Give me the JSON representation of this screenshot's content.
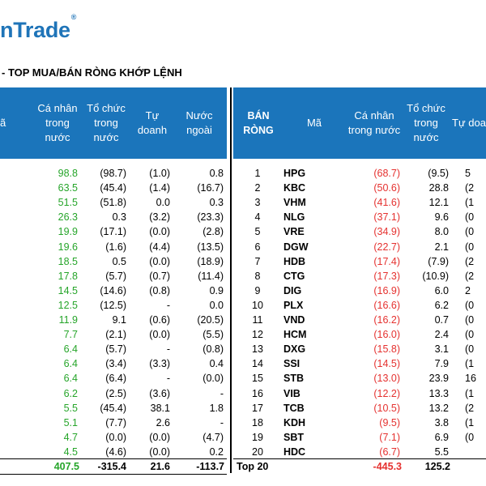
{
  "brand": {
    "name": "nTrade",
    "mark": "®"
  },
  "headline": "- TOP MUA/BÁN RÒNG KHỚP LỆNH",
  "left_table": {
    "headers": {
      "ma": "ã",
      "ca_nhan": [
        "Cá nhân",
        "trong",
        "nước"
      ],
      "to_chuc": [
        "Tổ chức",
        "trong",
        "nước"
      ],
      "tu_doanh": [
        "Tự",
        "doanh"
      ],
      "nuoc_ngoai": [
        "Nước",
        "ngoài"
      ]
    },
    "rows": [
      {
        "ca_nhan": "98.8",
        "to_chuc": "(98.7)",
        "tu_doanh": "(1.0)",
        "nuoc_ngoai": "0.8"
      },
      {
        "ca_nhan": "63.5",
        "to_chuc": "(45.4)",
        "tu_doanh": "(1.4)",
        "nuoc_ngoai": "(16.7)"
      },
      {
        "ca_nhan": "51.5",
        "to_chuc": "(51.8)",
        "tu_doanh": "0.0",
        "nuoc_ngoai": "0.3"
      },
      {
        "ca_nhan": "26.3",
        "to_chuc": "0.3",
        "tu_doanh": "(3.2)",
        "nuoc_ngoai": "(23.3)"
      },
      {
        "ca_nhan": "19.9",
        "to_chuc": "(17.1)",
        "tu_doanh": "(0.0)",
        "nuoc_ngoai": "(2.8)"
      },
      {
        "ca_nhan": "19.6",
        "to_chuc": "(1.6)",
        "tu_doanh": "(4.4)",
        "nuoc_ngoai": "(13.5)"
      },
      {
        "ca_nhan": "18.5",
        "to_chuc": "0.5",
        "tu_doanh": "(0.0)",
        "nuoc_ngoai": "(18.9)"
      },
      {
        "ca_nhan": "17.8",
        "to_chuc": "(5.7)",
        "tu_doanh": "(0.7)",
        "nuoc_ngoai": "(11.4)"
      },
      {
        "ca_nhan": "14.5",
        "to_chuc": "(14.6)",
        "tu_doanh": "(0.8)",
        "nuoc_ngoai": "0.9"
      },
      {
        "ca_nhan": "12.5",
        "to_chuc": "(12.5)",
        "tu_doanh": "-",
        "nuoc_ngoai": "0.0"
      },
      {
        "ca_nhan": "11.9",
        "to_chuc": "9.1",
        "tu_doanh": "(0.6)",
        "nuoc_ngoai": "(20.5)"
      },
      {
        "ca_nhan": "7.7",
        "to_chuc": "(2.1)",
        "tu_doanh": "(0.0)",
        "nuoc_ngoai": "(5.5)"
      },
      {
        "ca_nhan": "6.4",
        "to_chuc": "(5.7)",
        "tu_doanh": "-",
        "nuoc_ngoai": "(0.8)"
      },
      {
        "ca_nhan": "6.4",
        "to_chuc": "(3.4)",
        "tu_doanh": "(3.3)",
        "nuoc_ngoai": "0.4"
      },
      {
        "ca_nhan": "6.4",
        "to_chuc": "(6.4)",
        "tu_doanh": "-",
        "nuoc_ngoai": "(0.0)"
      },
      {
        "ca_nhan": "6.2",
        "to_chuc": "(2.5)",
        "tu_doanh": "(3.6)",
        "nuoc_ngoai": "-"
      },
      {
        "ca_nhan": "5.5",
        "to_chuc": "(45.4)",
        "tu_doanh": "38.1",
        "nuoc_ngoai": "1.8"
      },
      {
        "ca_nhan": "5.1",
        "to_chuc": "(7.7)",
        "tu_doanh": "2.6",
        "nuoc_ngoai": "-"
      },
      {
        "ca_nhan": "4.7",
        "to_chuc": "(0.0)",
        "tu_doanh": "(0.0)",
        "nuoc_ngoai": "(4.7)"
      },
      {
        "ca_nhan": "4.5",
        "to_chuc": "(4.6)",
        "tu_doanh": "(0.0)",
        "nuoc_ngoai": "0.2"
      }
    ],
    "total": {
      "ca_nhan": "407.5",
      "to_chuc": "-315.4",
      "tu_doanh": "21.6",
      "nuoc_ngoai": "-113.7"
    }
  },
  "right_table": {
    "headers": {
      "ban_rong": [
        "BÁN",
        "RÒNG"
      ],
      "ma": "Mã",
      "ca_nhan": [
        "Cá nhân",
        "trong nước"
      ],
      "to_chuc": [
        "Tổ chức",
        "trong",
        "nước"
      ],
      "tu_doanh": "Tự doa"
    },
    "rows": [
      {
        "rank": "1",
        "code": "HPG",
        "ca_nhan": "(68.7)",
        "to_chuc": "(9.5)",
        "tu_doanh": "5"
      },
      {
        "rank": "2",
        "code": "KBC",
        "ca_nhan": "(50.6)",
        "to_chuc": "28.8",
        "tu_doanh": "(2"
      },
      {
        "rank": "3",
        "code": "VHM",
        "ca_nhan": "(41.6)",
        "to_chuc": "12.1",
        "tu_doanh": "(1"
      },
      {
        "rank": "4",
        "code": "NLG",
        "ca_nhan": "(37.1)",
        "to_chuc": "9.6",
        "tu_doanh": "(0"
      },
      {
        "rank": "5",
        "code": "VRE",
        "ca_nhan": "(34.9)",
        "to_chuc": "8.0",
        "tu_doanh": "(0"
      },
      {
        "rank": "6",
        "code": "DGW",
        "ca_nhan": "(22.7)",
        "to_chuc": "2.1",
        "tu_doanh": "(0"
      },
      {
        "rank": "7",
        "code": "HDB",
        "ca_nhan": "(17.4)",
        "to_chuc": "(7.9)",
        "tu_doanh": "(2"
      },
      {
        "rank": "8",
        "code": "CTG",
        "ca_nhan": "(17.3)",
        "to_chuc": "(10.9)",
        "tu_doanh": "(2"
      },
      {
        "rank": "9",
        "code": "DIG",
        "ca_nhan": "(16.9)",
        "to_chuc": "6.0",
        "tu_doanh": "2"
      },
      {
        "rank": "10",
        "code": "PLX",
        "ca_nhan": "(16.6)",
        "to_chuc": "6.2",
        "tu_doanh": "(0"
      },
      {
        "rank": "11",
        "code": "VND",
        "ca_nhan": "(16.2)",
        "to_chuc": "0.7",
        "tu_doanh": "(0"
      },
      {
        "rank": "12",
        "code": "HCM",
        "ca_nhan": "(16.0)",
        "to_chuc": "2.4",
        "tu_doanh": "(0"
      },
      {
        "rank": "13",
        "code": "DXG",
        "ca_nhan": "(15.8)",
        "to_chuc": "3.1",
        "tu_doanh": "(0"
      },
      {
        "rank": "14",
        "code": "SSI",
        "ca_nhan": "(14.5)",
        "to_chuc": "7.9",
        "tu_doanh": "(1"
      },
      {
        "rank": "15",
        "code": "STB",
        "ca_nhan": "(13.0)",
        "to_chuc": "23.9",
        "tu_doanh": "16"
      },
      {
        "rank": "16",
        "code": "VIB",
        "ca_nhan": "(12.2)",
        "to_chuc": "13.3",
        "tu_doanh": "(1"
      },
      {
        "rank": "17",
        "code": "TCB",
        "ca_nhan": "(10.5)",
        "to_chuc": "13.2",
        "tu_doanh": "(2"
      },
      {
        "rank": "18",
        "code": "KDH",
        "ca_nhan": "(9.5)",
        "to_chuc": "3.8",
        "tu_doanh": "(1"
      },
      {
        "rank": "19",
        "code": "SBT",
        "ca_nhan": "(7.1)",
        "to_chuc": "6.9",
        "tu_doanh": "(0"
      },
      {
        "rank": "20",
        "code": "HDC",
        "ca_nhan": "(6.7)",
        "to_chuc": "5.5",
        "tu_doanh": ""
      }
    ],
    "total": {
      "label": "Top 20",
      "ca_nhan": "-445.3",
      "to_chuc": "125.2"
    }
  },
  "colors": {
    "header_bg": "#1b75bb",
    "positive": "#26a52a",
    "negative": "#e5312f",
    "brand": "#1f74b8"
  }
}
